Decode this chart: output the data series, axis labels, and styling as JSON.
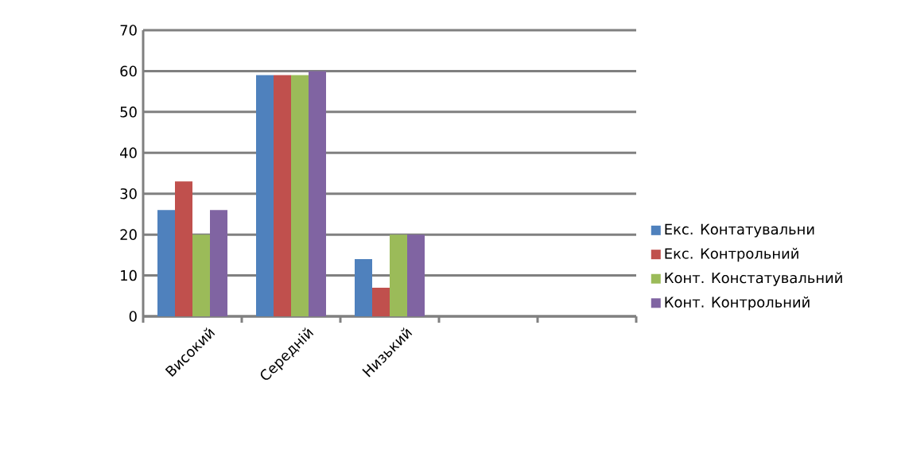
{
  "chart_data": {
    "type": "bar",
    "categories": [
      "Високий",
      "Середній",
      "Низький",
      null,
      null
    ],
    "series": [
      {
        "name": "Екс. Контатувальни",
        "color": "#4f81bd",
        "values": [
          26,
          59,
          14,
          null,
          null
        ]
      },
      {
        "name": "Екс. Контрольний",
        "color": "#c0504d",
        "values": [
          33,
          59,
          7,
          null,
          null
        ]
      },
      {
        "name": "Конт. Констатувальний",
        "color": "#9bbb59",
        "values": [
          20,
          59,
          20,
          null,
          null
        ]
      },
      {
        "name": "Конт. Контрольний",
        "color": "#8064a2",
        "values": [
          26,
          60,
          20,
          null,
          null
        ]
      }
    ],
    "ylim": [
      0,
      70
    ],
    "yticks": [
      0,
      10,
      20,
      30,
      40,
      50,
      60,
      70
    ],
    "grid": "y",
    "legend": "right"
  }
}
